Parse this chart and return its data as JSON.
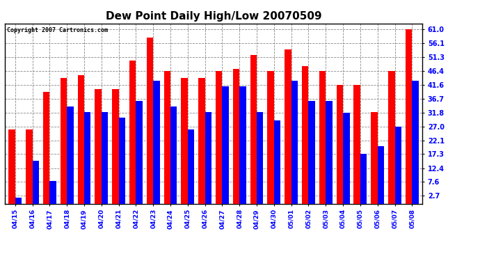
{
  "title": "Dew Point Daily High/Low 20070509",
  "copyright": "Copyright 2007 Cartronics.com",
  "labels": [
    "04/15",
    "04/16",
    "04/17",
    "04/18",
    "04/19",
    "04/20",
    "04/21",
    "04/22",
    "04/23",
    "04/24",
    "04/25",
    "04/26",
    "04/27",
    "04/28",
    "04/29",
    "04/30",
    "05/01",
    "05/02",
    "05/03",
    "05/04",
    "05/05",
    "05/06",
    "05/07",
    "05/08"
  ],
  "high": [
    26.0,
    26.0,
    39.0,
    44.0,
    45.0,
    40.0,
    40.0,
    50.0,
    58.0,
    46.4,
    44.0,
    44.0,
    46.4,
    47.0,
    52.0,
    46.4,
    54.0,
    48.0,
    46.4,
    41.6,
    41.6,
    32.0,
    46.4,
    61.0
  ],
  "low": [
    2.0,
    15.0,
    8.0,
    34.0,
    32.0,
    32.0,
    30.0,
    36.0,
    43.0,
    34.0,
    26.0,
    32.0,
    41.0,
    41.0,
    32.0,
    29.0,
    43.0,
    36.0,
    36.0,
    31.8,
    17.3,
    20.0,
    27.0,
    43.0
  ],
  "high_color": "#ff0000",
  "low_color": "#0000ff",
  "yticks": [
    2.7,
    7.6,
    12.4,
    17.3,
    22.1,
    27.0,
    31.8,
    36.7,
    41.6,
    46.4,
    51.3,
    56.1,
    61.0
  ],
  "ymin": 0,
  "ymax": 63,
  "background": "#ffffff",
  "plot_bg": "#ffffff",
  "grid_color": "#888888",
  "title_fontsize": 11,
  "bar_width": 0.38,
  "figwidth": 6.9,
  "figheight": 3.75,
  "dpi": 100
}
